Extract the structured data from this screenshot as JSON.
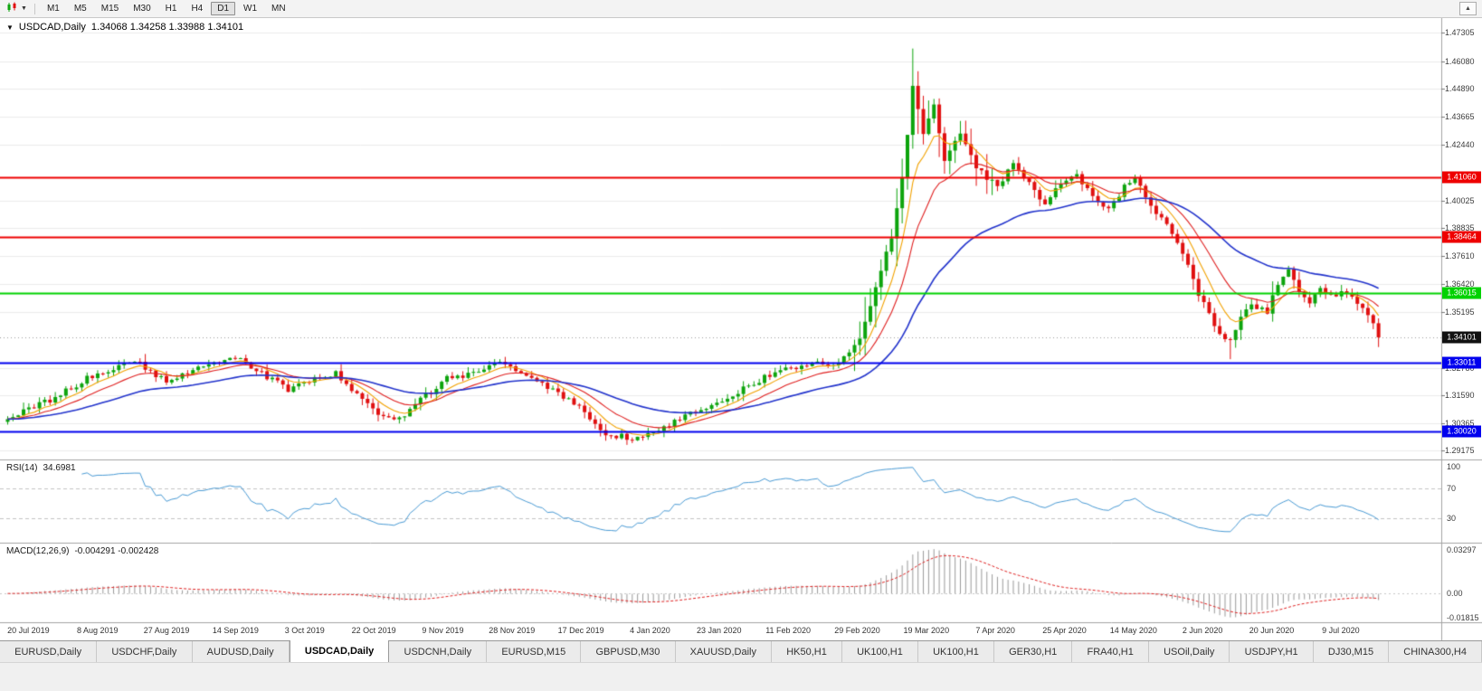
{
  "toolbar": {
    "timeframes": [
      "M1",
      "M5",
      "M15",
      "M30",
      "H1",
      "H4",
      "D1",
      "W1",
      "MN"
    ],
    "active_timeframe": "D1",
    "dropdown_glyph": "▼",
    "overflow_glyph": "▲"
  },
  "chart_header": {
    "collapse_glyph": "▼",
    "title": "USDCAD,Daily",
    "quote": "1.34068 1.34258 1.33988 1.34101"
  },
  "rsi_header": {
    "name": "RSI(14)",
    "value": "34.6981"
  },
  "macd_header": {
    "name": "MACD(12,26,9)",
    "value": "-0.004291 -0.002428"
  },
  "chart_data": {
    "type": "candlestick",
    "symbol": "USDCAD",
    "timeframe": "Daily",
    "current_bar": {
      "open": 1.34068,
      "high": 1.34258,
      "low": 1.33988,
      "close": 1.34101
    },
    "price_range": {
      "top": 1.4795,
      "bottom": 1.288
    },
    "y_axis_ticks": [
      "1.47305",
      "1.46080",
      "1.44890",
      "1.43665",
      "1.42440",
      "1.40025",
      "1.38835",
      "1.37610",
      "1.36420",
      "1.35195",
      "1.32780",
      "1.31590",
      "1.30365",
      "1.29175"
    ],
    "horizontal_lines": [
      {
        "price": 1.4106,
        "label": "1.41060",
        "color": "#ee0000",
        "type": "resistance"
      },
      {
        "price": 1.38464,
        "label": "1.38464",
        "color": "#ee0000",
        "type": "resistance"
      },
      {
        "price": 1.36015,
        "label": "1.36015",
        "color": "#00d200",
        "type": "level"
      },
      {
        "price": 1.33011,
        "label": "1.33011",
        "color": "#0000ee",
        "type": "support"
      },
      {
        "price": 1.3002,
        "label": "1.30020",
        "color": "#0000ee",
        "type": "support"
      }
    ],
    "last_price_label": {
      "price": 1.34101,
      "label": "1.34101",
      "bg": "#111111"
    },
    "x_labels": [
      "20 Jul 2019",
      "8 Aug 2019",
      "27 Aug 2019",
      "14 Sep 2019",
      "3 Oct 2019",
      "22 Oct 2019",
      "9 Nov 2019",
      "28 Nov 2019",
      "17 Dec 2019",
      "4 Jan 2020",
      "23 Jan 2020",
      "11 Feb 2020",
      "29 Feb 2020",
      "19 Mar 2020",
      "7 Apr 2020",
      "25 Apr 2020",
      "14 May 2020",
      "2 Jun 2020",
      "20 Jun 2020",
      "9 Jul 2020"
    ],
    "candle_count": 260,
    "close_waypoints": [
      [
        0,
        1.3055
      ],
      [
        8,
        1.314
      ],
      [
        15,
        1.323
      ],
      [
        24,
        1.331
      ],
      [
        30,
        1.3215
      ],
      [
        36,
        1.328
      ],
      [
        43,
        1.332
      ],
      [
        48,
        1.3255
      ],
      [
        53,
        1.3185
      ],
      [
        58,
        1.3235
      ],
      [
        62,
        1.3255
      ],
      [
        66,
        1.3165
      ],
      [
        70,
        1.3075
      ],
      [
        74,
        1.3055
      ],
      [
        78,
        1.314
      ],
      [
        83,
        1.323
      ],
      [
        88,
        1.3255
      ],
      [
        93,
        1.3295
      ],
      [
        98,
        1.3245
      ],
      [
        104,
        1.3165
      ],
      [
        109,
        1.3085
      ],
      [
        113,
        1.299
      ],
      [
        118,
        1.2975
      ],
      [
        123,
        1.301
      ],
      [
        128,
        1.307
      ],
      [
        134,
        1.313
      ],
      [
        140,
        1.32
      ],
      [
        146,
        1.327
      ],
      [
        152,
        1.33
      ],
      [
        157,
        1.329
      ],
      [
        161,
        1.34
      ],
      [
        163,
        1.355
      ],
      [
        165,
        1.37
      ],
      [
        167,
        1.385
      ],
      [
        169,
        1.41
      ],
      [
        171,
        1.45
      ],
      [
        173,
        1.428
      ],
      [
        175,
        1.442
      ],
      [
        177,
        1.418
      ],
      [
        180,
        1.43
      ],
      [
        183,
        1.415
      ],
      [
        187,
        1.406
      ],
      [
        190,
        1.417
      ],
      [
        193,
        1.408
      ],
      [
        196,
        1.399
      ],
      [
        199,
        1.408
      ],
      [
        202,
        1.412
      ],
      [
        205,
        1.402
      ],
      [
        208,
        1.396
      ],
      [
        211,
        1.406
      ],
      [
        213,
        1.41
      ],
      [
        216,
        1.398
      ],
      [
        219,
        1.389
      ],
      [
        222,
        1.377
      ],
      [
        225,
        1.36
      ],
      [
        227,
        1.351
      ],
      [
        229,
        1.343
      ],
      [
        231,
        1.34
      ],
      [
        233,
        1.349
      ],
      [
        235,
        1.3555
      ],
      [
        238,
        1.3525
      ],
      [
        240,
        1.365
      ],
      [
        242,
        1.37
      ],
      [
        244,
        1.3605
      ],
      [
        246,
        1.356
      ],
      [
        248,
        1.3625
      ],
      [
        250,
        1.3585
      ],
      [
        252,
        1.361
      ],
      [
        254,
        1.358
      ],
      [
        256,
        1.355
      ],
      [
        258,
        1.348
      ],
      [
        259,
        1.341
      ]
    ],
    "extremes": [
      {
        "i": 74,
        "low": 1.3036
      },
      {
        "i": 118,
        "low": 1.2951
      },
      {
        "i": 171,
        "high": 1.466
      },
      {
        "i": 231,
        "low": 1.3315
      },
      {
        "i": 259,
        "low": 1.3399
      }
    ],
    "moving_averages": [
      {
        "period": 7,
        "color_key": "ma_fast"
      },
      {
        "period": 15,
        "color_key": "ma_mid"
      },
      {
        "period": 40,
        "color_key": "ma_slow"
      }
    ],
    "colors": {
      "up": "#0da40d",
      "down": "#e01010",
      "ma_fast": "#f2a200",
      "ma_mid": "#e02020",
      "ma_slow": "#2233cc",
      "grid": "#ebebeb",
      "axis_text": "#3c3c3c",
      "separator": "#a3a3a3",
      "current_price_line": "#9c9c9c"
    },
    "rsi": {
      "period": 14,
      "current": "34.6981",
      "levels": [
        "100",
        "70",
        "30"
      ],
      "level_values": [
        100,
        70,
        30
      ],
      "range": [
        0,
        107
      ],
      "color": "#4a9bd5",
      "level_line_color": "#c4c4c4"
    },
    "macd": {
      "fast": 12,
      "slow": 26,
      "signal": 9,
      "axis_labels": [
        "0.03297",
        "0.00",
        "-0.01815"
      ],
      "range": [
        -0.01815,
        0.03297
      ],
      "hist_color": "#9a9a9a",
      "signal_color": "#e02020",
      "zero_line_color": "#c8c8c8"
    }
  },
  "tabs": {
    "items": [
      "EURUSD,Daily",
      "USDCHF,Daily",
      "AUDUSD,Daily",
      "USDCAD,Daily",
      "USDCNH,Daily",
      "EURUSD,M15",
      "GBPUSD,M30",
      "XAUUSD,Daily",
      "HK50,H1",
      "UK100,H1",
      "UK100,H1",
      "GER30,H1",
      "FRA40,H1",
      "USOil,Daily",
      "USDJPY,H1",
      "DJ30,M15",
      "CHINA300,H4"
    ],
    "active": "USDCAD,Daily",
    "active_index": 3
  }
}
